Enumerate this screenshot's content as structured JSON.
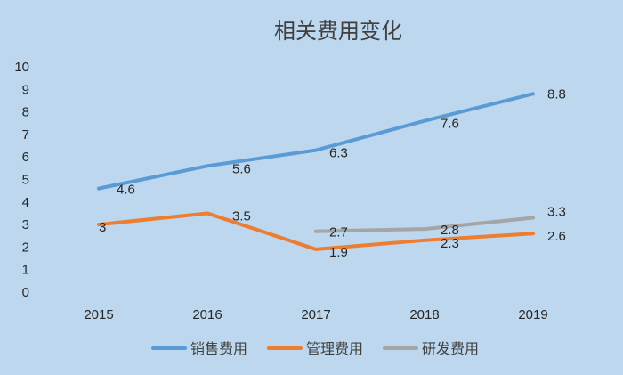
{
  "chart_data": {
    "type": "line",
    "title": "相关费用变化",
    "xlabel": "",
    "ylabel": "",
    "ylim": [
      0,
      10
    ],
    "yticks": [
      "0",
      "1",
      "2",
      "3",
      "4",
      "5",
      "6",
      "7",
      "8",
      "9",
      "10"
    ],
    "categories": [
      "2015",
      "2016",
      "2017",
      "2018",
      "2019"
    ],
    "grid": false,
    "legend_position": "bottom",
    "series": [
      {
        "name": "销售费用",
        "color": "#5b9bd5",
        "values": [
          4.6,
          5.6,
          6.3,
          7.6,
          8.8
        ],
        "labels": [
          "4.6",
          "5.6",
          "6.3",
          "7.6",
          "8.8"
        ]
      },
      {
        "name": "管理费用",
        "color": "#ed7d31",
        "values": [
          3,
          3.5,
          1.9,
          2.3,
          2.6
        ],
        "labels": [
          "3",
          "3.5",
          "1.9",
          "2.3",
          "2.6"
        ]
      },
      {
        "name": "研发费用",
        "color": "#a5a5a5",
        "values": [
          null,
          null,
          2.7,
          2.8,
          3.3
        ],
        "labels": [
          null,
          null,
          "2.7",
          "2.8",
          "3.3"
        ]
      }
    ]
  }
}
